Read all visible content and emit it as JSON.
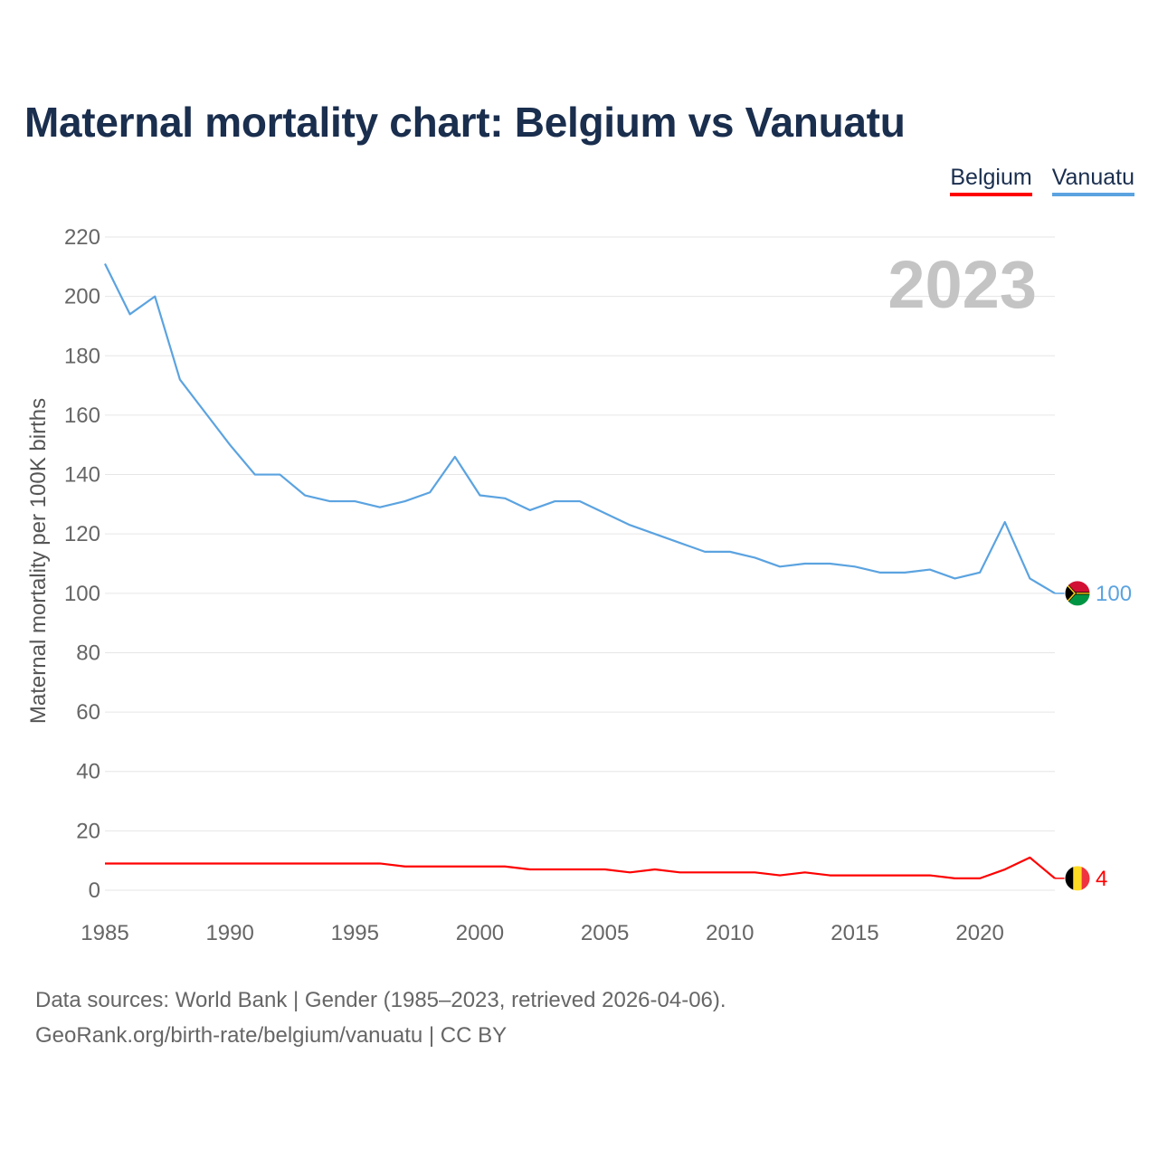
{
  "title": "Maternal mortality chart: Belgium vs Vanuatu",
  "legend": [
    {
      "label": "Belgium",
      "color": "#ff0000"
    },
    {
      "label": "Vanuatu",
      "color": "#5ba3e0"
    }
  ],
  "footer": {
    "line1": "Data sources: World Bank | Gender (1985–2023, retrieved 2026-04-06).",
    "line2": "GeoRank.org/birth-rate/belgium/vanuatu | CC BY"
  },
  "chart_data": {
    "type": "line",
    "title": "Maternal mortality chart: Belgium vs Vanuatu",
    "xlabel": "",
    "ylabel": "Maternal mortality per 100K births",
    "year_label": "2023",
    "xlim": [
      1985,
      2023
    ],
    "ylim": [
      0,
      220
    ],
    "yticks": [
      0,
      20,
      40,
      60,
      80,
      100,
      120,
      140,
      160,
      180,
      200,
      220
    ],
    "xticks": [
      1985,
      1990,
      1995,
      2000,
      2005,
      2010,
      2015,
      2020
    ],
    "grid": true,
    "legend_position": "top-right",
    "x": [
      1985,
      1986,
      1987,
      1988,
      1989,
      1990,
      1991,
      1992,
      1993,
      1994,
      1995,
      1996,
      1997,
      1998,
      1999,
      2000,
      2001,
      2002,
      2003,
      2004,
      2005,
      2006,
      2007,
      2008,
      2009,
      2010,
      2011,
      2012,
      2013,
      2014,
      2015,
      2016,
      2017,
      2018,
      2019,
      2020,
      2021,
      2022,
      2023
    ],
    "series": [
      {
        "name": "Vanuatu",
        "color": "#5ba3e0",
        "end_label": "100",
        "values": [
          211,
          194,
          200,
          172,
          161,
          150,
          140,
          140,
          133,
          131,
          131,
          129,
          131,
          134,
          146,
          133,
          132,
          128,
          131,
          131,
          127,
          123,
          120,
          117,
          114,
          114,
          112,
          109,
          110,
          110,
          109,
          107,
          107,
          108,
          105,
          107,
          124,
          105,
          100
        ]
      },
      {
        "name": "Belgium",
        "color": "#ff0000",
        "end_label": "4",
        "values": [
          9,
          9,
          9,
          9,
          9,
          9,
          9,
          9,
          9,
          9,
          9,
          9,
          8,
          8,
          8,
          8,
          8,
          7,
          7,
          7,
          7,
          6,
          7,
          6,
          6,
          6,
          6,
          5,
          6,
          5,
          5,
          5,
          5,
          5,
          4,
          4,
          7,
          11,
          4
        ]
      }
    ]
  }
}
